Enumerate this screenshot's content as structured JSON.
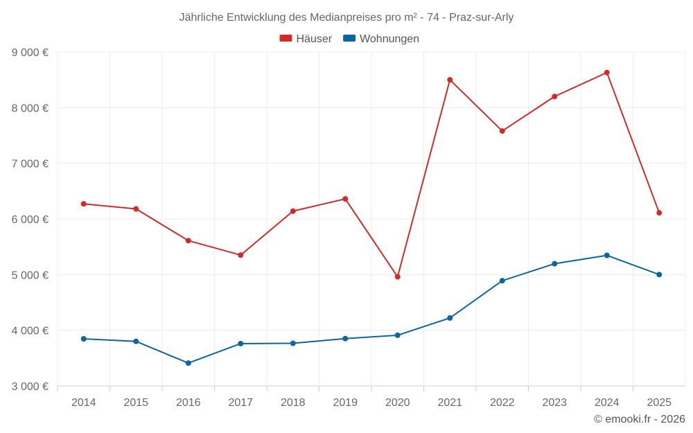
{
  "chart_data": {
    "type": "line",
    "title": "Jährliche Entwicklung des Medianpreises pro m² - 74 - Praz-sur-Arly",
    "categories": [
      "2014",
      "2015",
      "2016",
      "2017",
      "2018",
      "2019",
      "2020",
      "2021",
      "2022",
      "2023",
      "2024",
      "2025"
    ],
    "series": [
      {
        "name": "Häuser",
        "color": "#d32a27",
        "values": [
          6270,
          6180,
          5610,
          5350,
          6140,
          6360,
          4960,
          8500,
          7580,
          8200,
          8630,
          6110
        ]
      },
      {
        "name": "Wohnungen",
        "color": "#0a65a0",
        "values": [
          3845,
          3800,
          3410,
          3760,
          3765,
          3850,
          3910,
          4220,
          4890,
          5195,
          5345,
          5000
        ]
      }
    ],
    "ylim": [
      3000,
      9000
    ],
    "yticks": [
      3000,
      4000,
      5000,
      6000,
      7000,
      8000,
      9000
    ],
    "ytick_labels": [
      "3 000 €",
      "4 000 €",
      "5 000 €",
      "6 000 €",
      "7 000 €",
      "8 000 €",
      "9 000 €"
    ],
    "xlabel": "",
    "ylabel": "",
    "grid": true,
    "legend_position": "top-center"
  },
  "footer": {
    "copyright": "© emooki.fr - 2026"
  }
}
